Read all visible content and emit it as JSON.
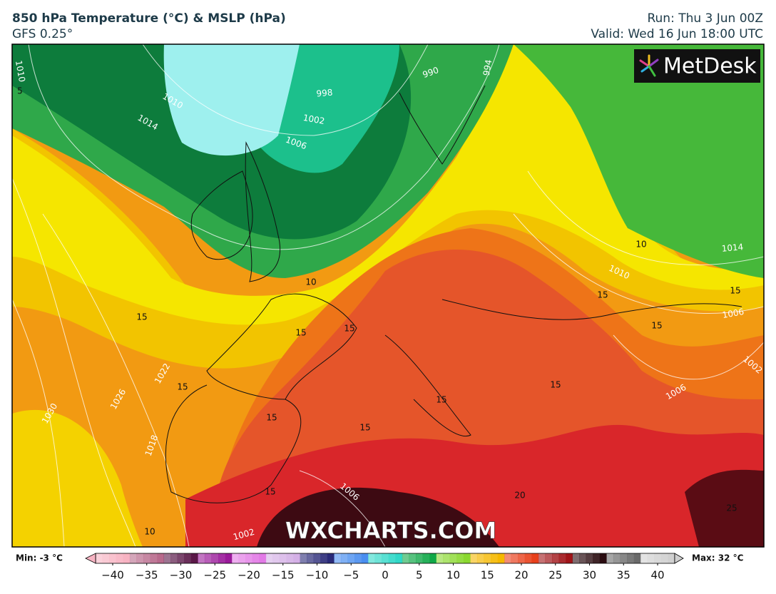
{
  "header": {
    "title": "850 hPa Temperature (°C) & MSLP (hPa)",
    "model": "GFS 0.25°",
    "run": "Run: Thu 3 Jun 00Z",
    "valid": "Valid: Wed 16 Jun 18:00 UTC"
  },
  "logo": "MetDesk",
  "watermark": "WXCHARTS.COM",
  "map": {
    "isobar_labels": [
      1010,
      1010,
      1014,
      998,
      1002,
      1006,
      994,
      990,
      1014,
      1010,
      1006,
      1002,
      1006,
      1022,
      1026,
      1030,
      1018,
      1006,
      1002
    ],
    "isotherm_labels": [
      5,
      10,
      15,
      15,
      15,
      15,
      15,
      15,
      15,
      15,
      15,
      15,
      15,
      10,
      20,
      25,
      10,
      15
    ]
  },
  "colorbar": {
    "min_label": "Min: -3 °C",
    "max_label": "Max: 32 °C",
    "ticks": [
      {
        "value": -40,
        "label": "−40"
      },
      {
        "value": -35,
        "label": "−35"
      },
      {
        "value": -30,
        "label": "−30"
      },
      {
        "value": -25,
        "label": "−25"
      },
      {
        "value": -20,
        "label": "−20"
      },
      {
        "value": -15,
        "label": "−15"
      },
      {
        "value": -10,
        "label": "−10"
      },
      {
        "value": -5,
        "label": "−5"
      },
      0,
      5,
      10,
      15,
      20,
      25,
      30,
      35,
      40
    ],
    "colors": [
      "#f7b3c2",
      "#b86a8c",
      "#5a1848",
      "#9a1a9a",
      "#e27ae6",
      "#d4b0e6",
      "#2a2a78",
      "#4a8ef0",
      "#30d8c8",
      "#10a848",
      "#8ad830",
      "#f5b800",
      "#e8401c",
      "#a01418",
      "#2a0c10",
      "#6a6a6a",
      "#d0d0d0"
    ]
  }
}
